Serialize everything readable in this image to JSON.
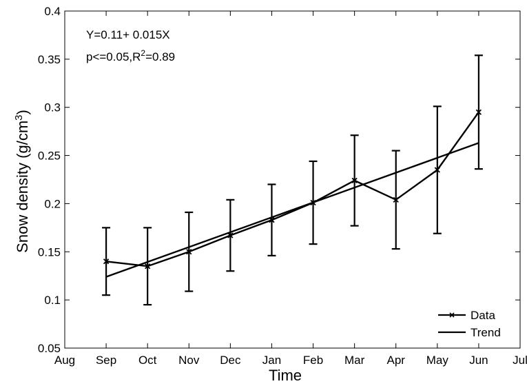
{
  "chart_data": {
    "type": "line",
    "title": "",
    "xlabel": "Time",
    "ylabel_main": "Snow density (g/cm",
    "ylabel_sup": "3",
    "ylabel_close": ")",
    "xlim": [
      0,
      11
    ],
    "ylim": [
      0.05,
      0.4
    ],
    "x_ticks": [
      {
        "x": 0,
        "label": "Aug"
      },
      {
        "x": 1,
        "label": "Sep"
      },
      {
        "x": 2,
        "label": "Oct"
      },
      {
        "x": 3,
        "label": "Nov"
      },
      {
        "x": 4,
        "label": "Dec"
      },
      {
        "x": 5,
        "label": "Jan"
      },
      {
        "x": 6,
        "label": "Feb"
      },
      {
        "x": 7,
        "label": "Mar"
      },
      {
        "x": 8,
        "label": "Apr"
      },
      {
        "x": 9,
        "label": "May"
      },
      {
        "x": 10,
        "label": "Jun"
      },
      {
        "x": 11,
        "label": "Jul"
      }
    ],
    "y_ticks": [
      {
        "y": 0.05,
        "label": "0.05"
      },
      {
        "y": 0.1,
        "label": "0.1"
      },
      {
        "y": 0.15,
        "label": "0.15"
      },
      {
        "y": 0.2,
        "label": "0.2"
      },
      {
        "y": 0.25,
        "label": "0.25"
      },
      {
        "y": 0.3,
        "label": "0.3"
      },
      {
        "y": 0.35,
        "label": "0.35"
      },
      {
        "y": 0.4,
        "label": "0.4"
      }
    ],
    "grid": false,
    "legend_position": "bottom-right",
    "series": [
      {
        "name": "Data",
        "marker": "x",
        "x": [
          1,
          2,
          3,
          4,
          5,
          6,
          7,
          8,
          9,
          10
        ],
        "y": [
          0.14,
          0.135,
          0.15,
          0.167,
          0.183,
          0.201,
          0.224,
          0.204,
          0.235,
          0.295
        ],
        "err_low": [
          0.105,
          0.095,
          0.109,
          0.13,
          0.146,
          0.158,
          0.177,
          0.153,
          0.169,
          0.236
        ],
        "err_high": [
          0.175,
          0.175,
          0.191,
          0.204,
          0.22,
          0.244,
          0.271,
          0.255,
          0.301,
          0.354
        ]
      },
      {
        "name": "Trend",
        "marker": "none",
        "x": [
          1,
          10
        ],
        "y": [
          0.124,
          0.263
        ]
      }
    ],
    "annotations": {
      "line1": "Y=0.11+ 0.015X",
      "line2_a": "p<=0.05,R",
      "line2_sup": "2",
      "line2_b": "=0.89"
    },
    "line_color": "#000000"
  }
}
